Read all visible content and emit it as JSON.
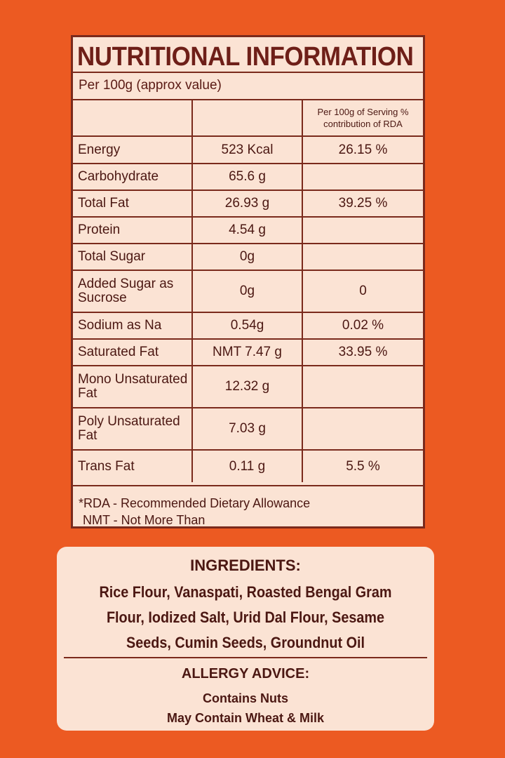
{
  "panel": {
    "title": "NUTRITIONAL INFORMATION",
    "subtitle": "Per 100g (approx value)",
    "header_col3": "Per 100g of Serving % contribution of RDA",
    "rows": [
      {
        "name": "Energy",
        "value": "523 Kcal",
        "rda": "26.15 %"
      },
      {
        "name": "Carbohydrate",
        "value": "65.6 g",
        "rda": ""
      },
      {
        "name": "Total Fat",
        "value": "26.93 g",
        "rda": "39.25 %"
      },
      {
        "name": "Protein",
        "value": "4.54 g",
        "rda": ""
      },
      {
        "name": "Total Sugar",
        "value": "0g",
        "rda": ""
      },
      {
        "name": "Added Sugar as Sucrose",
        "value": "0g",
        "rda": "0"
      },
      {
        "name": "Sodium as Na",
        "value": "0.54g",
        "rda": "0.02 %"
      },
      {
        "name": "Saturated Fat",
        "value": "NMT 7.47 g",
        "rda": "33.95 %"
      },
      {
        "name": "Mono Unsaturated Fat",
        "value": "12.32 g",
        "rda": ""
      },
      {
        "name": "Poly Unsaturated Fat",
        "value": "7.03 g",
        "rda": ""
      },
      {
        "name": "Trans Fat",
        "value": "0.11 g",
        "rda": "5.5 %"
      }
    ],
    "note_rda": "*RDA - Recommended Dietary Allowance",
    "note_nmt": "NMT - Not More Than"
  },
  "ingredients": {
    "title": "INGREDIENTS:",
    "text": "Rice Flour, Vanaspati, Roasted Bengal Gram Flour, Iodized Salt, Urid Dal Flour, Sesame Seeds, Cumin Seeds, Groundnut Oil",
    "allergy_title": "ALLERGY ADVICE:",
    "allergy_line1": "Contains Nuts",
    "allergy_line2": "May Contain Wheat & Milk"
  },
  "colors": {
    "background": "#ec5a22",
    "panel": "#fbe3d4",
    "ink": "#5a1a14",
    "rule": "#7a2a1c"
  }
}
